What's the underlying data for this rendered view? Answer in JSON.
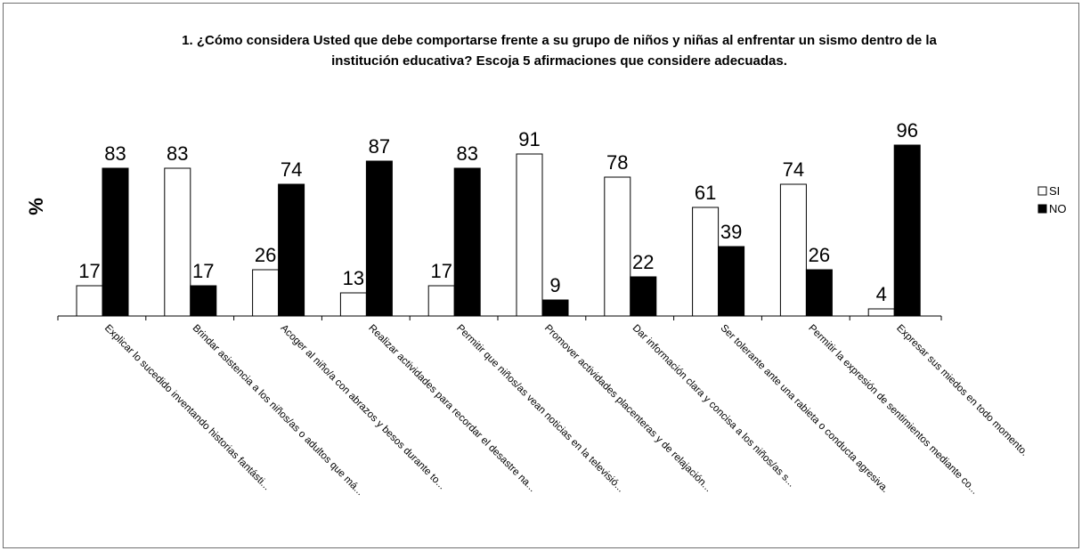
{
  "chart_data": {
    "type": "bar",
    "title_lines": [
      "1. ¿Cómo considera Usted que debe comportarse frente a su grupo de  niños y niñas al enfrentar un sismo dentro de la",
      "institución educativa? Escoja 5 afirmaciones que considere adecuadas."
    ],
    "ylabel": "%",
    "xlabel": "",
    "ylim": [
      0,
      100
    ],
    "grid": false,
    "legend_position": "right",
    "categories": [
      "Explicar lo sucedido inventando historias fantásti...",
      "Brindar asistencia a los niños/as o adultos que má...",
      "Acoger al niño/a con abrazos y besos durante to...",
      "Realizar actividades para recordar el desastre na...",
      "Permitir que niños/as vean noticias en la televisió...",
      "Promover actividades placenteras y de  relajación...",
      "Dar información clara y concisa  a los niños/as s...",
      "Ser tolerante ante una rabieta o conducta agresiva.",
      "Permitir la expresión de sentimientos mediante co...",
      "Expresar sus miedos en todo momento."
    ],
    "series": [
      {
        "name": "SI",
        "color": "#ffffff",
        "values": [
          17,
          83,
          26,
          13,
          17,
          91,
          78,
          61,
          74,
          4
        ]
      },
      {
        "name": "NO",
        "color": "#000000",
        "values": [
          83,
          17,
          74,
          87,
          83,
          9,
          22,
          39,
          26,
          96
        ]
      }
    ]
  }
}
